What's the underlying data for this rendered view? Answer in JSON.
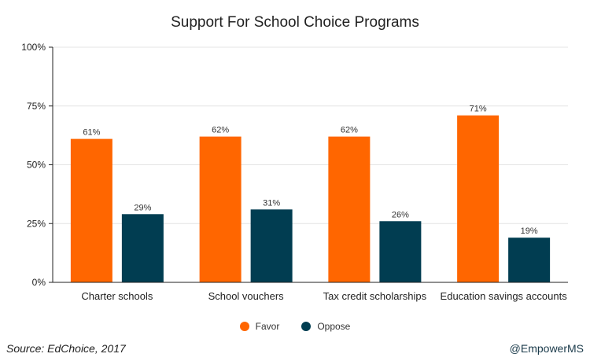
{
  "chart_data": {
    "type": "bar",
    "title": "Support For School Choice Programs",
    "categories": [
      "Charter schools",
      "School vouchers",
      "Tax credit scholarships",
      "Education savings accounts"
    ],
    "series": [
      {
        "name": "Favor",
        "values": [
          61,
          62,
          62,
          71
        ],
        "color": "#ff6600",
        "labels": [
          "61%",
          "62%",
          "62%",
          "71%"
        ]
      },
      {
        "name": "Oppose",
        "values": [
          29,
          31,
          26,
          19
        ],
        "color": "#013d51",
        "labels": [
          "29%",
          "31%",
          "26%",
          "19%"
        ]
      }
    ],
    "ylim": [
      0,
      100
    ],
    "yticks": [
      0,
      25,
      50,
      75,
      100
    ],
    "ytick_labels": [
      "0%",
      "25%",
      "50%",
      "75%",
      "100%"
    ],
    "grid": true,
    "legend_position": "bottom-center"
  },
  "footer": {
    "source": "Source: EdChoice, 2017",
    "handle": "@EmpowerMS"
  }
}
